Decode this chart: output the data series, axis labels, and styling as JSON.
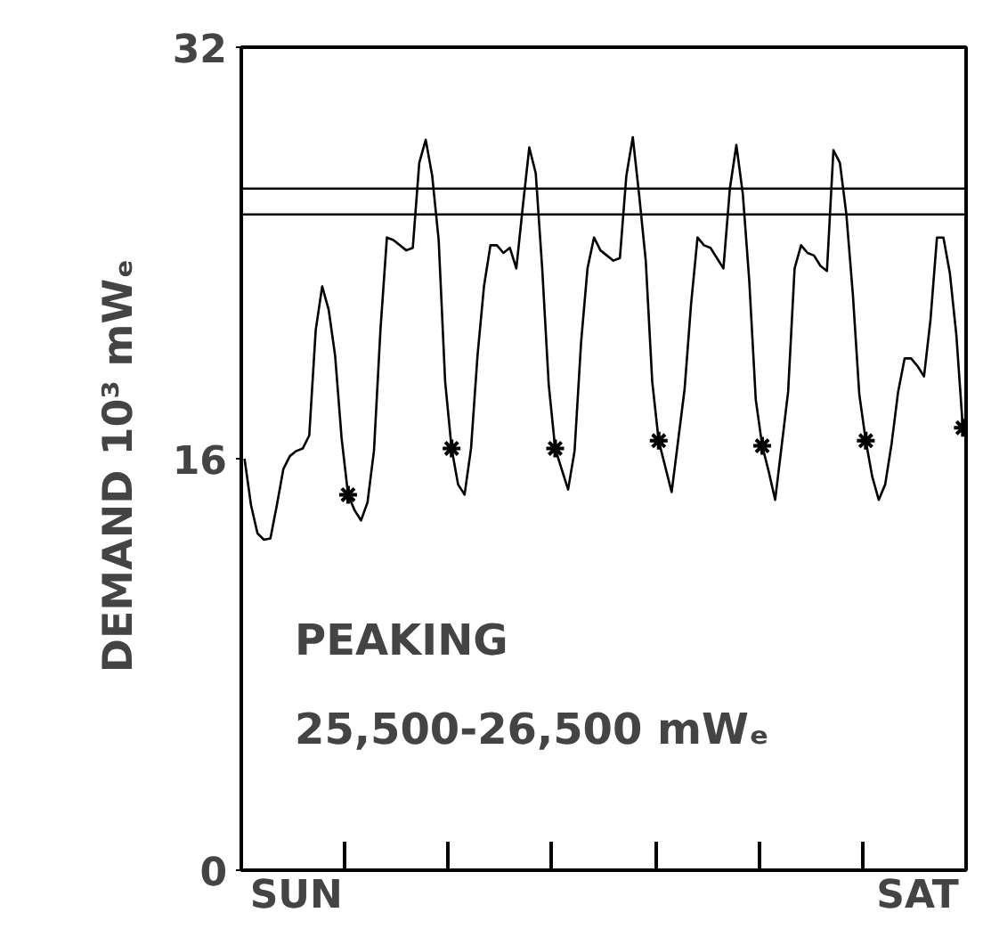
{
  "chart_data": {
    "type": "line",
    "ylabel": "DEMAND  10³ mWₑ",
    "annotations": [
      "PEAKING",
      "25,500-26,500 mWₑ"
    ],
    "categories": [
      null,
      null,
      null,
      null,
      null,
      null,
      null,
      null,
      "SUN",
      null,
      null,
      null,
      null,
      null,
      null,
      null,
      null,
      null,
      null,
      null,
      null,
      null,
      null,
      null,
      null,
      null,
      null,
      null,
      null,
      null,
      null,
      null,
      null,
      null,
      null,
      null,
      null,
      null,
      null,
      null,
      null,
      null,
      null,
      null,
      null,
      null,
      null,
      null,
      null,
      null,
      null,
      null,
      null,
      null,
      null,
      null,
      null,
      null,
      null,
      null,
      null,
      null,
      null,
      null,
      null,
      null,
      null,
      null,
      null,
      null,
      null,
      null,
      null,
      null,
      null,
      null,
      null,
      null,
      null,
      null,
      null,
      null,
      null,
      null,
      null,
      null,
      null,
      null,
      null,
      null,
      null,
      null,
      null,
      null,
      null,
      null,
      null,
      null,
      null,
      null,
      null,
      null,
      null,
      null,
      "SAT",
      null,
      null,
      null,
      null,
      null,
      null,
      null
    ],
    "ylim": [
      0,
      32
    ],
    "yticks": [
      0,
      16,
      32
    ],
    "grid": false,
    "ref_lines": [
      {
        "axis": "y",
        "value": 25.5,
        "color": "#000000"
      },
      {
        "axis": "y",
        "value": 26.5,
        "color": "#000000"
      }
    ],
    "series": [
      {
        "color": "#000000",
        "values": [
          16.0,
          14.2,
          13.1,
          12.85,
          12.9,
          14.2,
          15.6,
          16.1,
          16.3,
          16.4,
          16.9,
          21.0,
          22.7,
          21.8,
          20.0,
          16.8,
          14.6,
          14.0,
          13.6,
          14.3,
          16.3,
          21.0,
          24.6,
          24.5,
          24.3,
          24.1,
          24.2,
          27.5,
          28.4,
          27.0,
          24.5,
          19.0,
          16.4,
          15.0,
          14.6,
          16.4,
          20.0,
          22.7,
          24.3,
          24.3,
          24.0,
          24.2,
          23.4,
          25.8,
          28.1,
          27.1,
          23.4,
          18.9,
          16.4,
          15.6,
          14.8,
          16.3,
          20.5,
          23.4,
          24.6,
          24.1,
          23.9,
          23.7,
          23.8,
          27.0,
          28.5,
          26.2,
          23.7,
          19.0,
          16.7,
          15.7,
          14.7,
          16.7,
          18.7,
          22.0,
          24.6,
          24.3,
          24.2,
          23.8,
          23.4,
          26.5,
          28.2,
          26.3,
          22.9,
          18.3,
          16.5,
          15.5,
          14.4,
          16.5,
          18.6,
          23.4,
          24.3,
          24.0,
          23.9,
          23.5,
          23.3,
          28.0,
          27.5,
          25.5,
          22.4,
          18.5,
          16.7,
          15.3,
          14.4,
          15.0,
          16.6,
          18.6,
          19.9,
          19.9,
          19.6,
          19.2,
          21.4,
          24.6,
          24.6,
          23.2,
          20.8,
          17.2
        ]
      },
      {
        "type": "scatter",
        "color": "#000000",
        "marker": "cross",
        "values": [
          null,
          null,
          null,
          null,
          null,
          null,
          null,
          null,
          null,
          null,
          null,
          null,
          null,
          null,
          null,
          null,
          14.6,
          null,
          null,
          null,
          null,
          null,
          null,
          null,
          null,
          null,
          null,
          null,
          null,
          null,
          null,
          null,
          16.4,
          null,
          null,
          null,
          null,
          null,
          null,
          null,
          null,
          null,
          null,
          null,
          null,
          null,
          null,
          null,
          16.4,
          null,
          null,
          null,
          null,
          null,
          null,
          null,
          null,
          null,
          null,
          null,
          null,
          null,
          null,
          null,
          16.7,
          null,
          null,
          null,
          null,
          null,
          null,
          null,
          null,
          null,
          null,
          null,
          null,
          null,
          null,
          null,
          16.5,
          null,
          null,
          null,
          null,
          null,
          null,
          null,
          null,
          null,
          null,
          null,
          null,
          null,
          null,
          null,
          16.7,
          null,
          null,
          null,
          null,
          null,
          null,
          null,
          null,
          null,
          null,
          null,
          null,
          null,
          null,
          17.2
        ]
      }
    ]
  }
}
